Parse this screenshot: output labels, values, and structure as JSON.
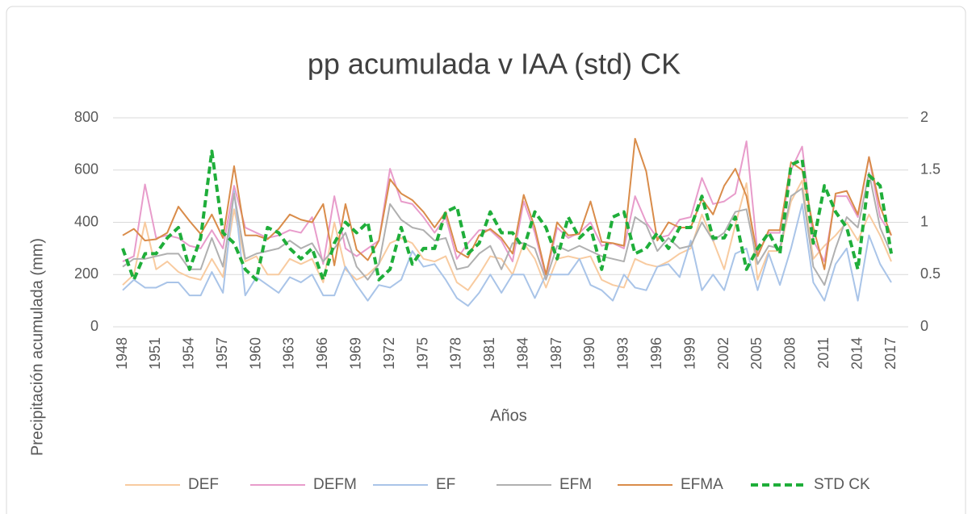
{
  "chart_data": {
    "type": "line",
    "title": "pp acumulada v IAA (std) CK",
    "x_label": "Años",
    "y_label": "Precipitación acumulada (mm)",
    "categories": [
      "1948",
      null,
      null,
      "1951",
      null,
      null,
      "1954",
      null,
      null,
      "1957",
      null,
      null,
      "1960",
      null,
      null,
      "1963",
      null,
      null,
      "1966",
      null,
      null,
      "1969",
      null,
      null,
      "1972",
      null,
      null,
      "1975",
      null,
      null,
      "1978",
      null,
      null,
      "1981",
      null,
      null,
      "1984",
      null,
      null,
      "1987",
      null,
      null,
      "1990",
      null,
      null,
      "1993",
      null,
      null,
      "1996",
      null,
      null,
      "1999",
      null,
      null,
      "2002",
      null,
      null,
      "2005",
      null,
      null,
      "2008",
      null,
      null,
      "2011",
      null,
      null,
      "2014",
      null,
      null,
      "2017"
    ],
    "ylim": [
      0,
      800
    ],
    "yticks": [
      0,
      200,
      400,
      600,
      800
    ],
    "y2lim": [
      0,
      2
    ],
    "y2ticks": [
      0,
      0.5,
      1,
      1.5,
      2
    ],
    "grid": true,
    "legend": "bottom",
    "series": [
      {
        "name": "DEF",
        "color": "#f8cba0",
        "values": [
          160,
          200,
          400,
          220,
          250,
          210,
          190,
          180,
          260,
          190,
          450,
          250,
          270,
          200,
          200,
          260,
          240,
          260,
          170,
          400,
          220,
          180,
          200,
          240,
          320,
          340,
          320,
          260,
          250,
          270,
          170,
          140,
          200,
          270,
          260,
          200,
          320,
          260,
          150,
          260,
          270,
          260,
          270,
          180,
          160,
          150,
          260,
          240,
          230,
          250,
          280,
          300,
          430,
          330,
          220,
          390,
          550,
          180,
          290,
          290,
          480,
          560,
          260,
          310,
          350,
          400,
          330,
          430,
          350,
          250
        ]
      },
      {
        "name": "DEFM",
        "color": "#e89ccb",
        "values": [
          250,
          270,
          545,
          340,
          350,
          340,
          310,
          300,
          370,
          300,
          540,
          380,
          360,
          340,
          350,
          370,
          360,
          420,
          240,
          500,
          300,
          270,
          300,
          330,
          605,
          480,
          470,
          420,
          360,
          420,
          260,
          320,
          370,
          370,
          330,
          250,
          480,
          360,
          190,
          380,
          340,
          360,
          400,
          310,
          320,
          300,
          500,
          400,
          340,
          350,
          410,
          420,
          570,
          470,
          480,
          510,
          710,
          280,
          360,
          360,
          600,
          690,
          330,
          250,
          500,
          500,
          420,
          650,
          420,
          350
        ]
      },
      {
        "name": "EF",
        "color": "#a9c4e8",
        "values": [
          140,
          180,
          150,
          150,
          170,
          170,
          120,
          120,
          210,
          130,
          520,
          120,
          190,
          160,
          130,
          190,
          170,
          200,
          120,
          120,
          230,
          160,
          100,
          160,
          150,
          180,
          290,
          230,
          240,
          180,
          110,
          80,
          130,
          200,
          130,
          200,
          200,
          110,
          200,
          200,
          200,
          260,
          160,
          140,
          100,
          200,
          150,
          140,
          230,
          240,
          190,
          330,
          140,
          200,
          140,
          280,
          300,
          140,
          280,
          160,
          300,
          470,
          170,
          100,
          240,
          300,
          100,
          350,
          240,
          170
        ]
      },
      {
        "name": "EFM",
        "color": "#b0b0b0",
        "values": [
          230,
          260,
          260,
          270,
          280,
          280,
          220,
          220,
          340,
          230,
          510,
          260,
          280,
          290,
          300,
          330,
          300,
          320,
          250,
          300,
          360,
          230,
          180,
          240,
          470,
          410,
          380,
          370,
          330,
          340,
          220,
          230,
          280,
          310,
          220,
          320,
          320,
          300,
          180,
          310,
          290,
          310,
          290,
          270,
          260,
          250,
          420,
          390,
          290,
          340,
          300,
          310,
          400,
          330,
          360,
          440,
          450,
          240,
          310,
          300,
          500,
          530,
          230,
          160,
          300,
          420,
          380,
          590,
          380,
          280
        ]
      },
      {
        "name": "EFMA",
        "color": "#d98c4a",
        "values": [
          350,
          375,
          330,
          335,
          360,
          460,
          405,
          355,
          430,
          340,
          615,
          350,
          350,
          335,
          375,
          430,
          410,
          400,
          470,
          235,
          470,
          295,
          255,
          330,
          565,
          510,
          485,
          440,
          380,
          440,
          290,
          265,
          350,
          375,
          340,
          280,
          505,
          380,
          200,
          400,
          350,
          355,
          480,
          325,
          320,
          310,
          720,
          595,
          330,
          400,
          380,
          380,
          490,
          430,
          540,
          605,
          500,
          270,
          370,
          370,
          630,
          600,
          380,
          220,
          510,
          520,
          430,
          650,
          460,
          350
        ]
      },
      {
        "name": "STD CK",
        "color": "#1fae3a",
        "dashed": true,
        "axis": "y2",
        "values": [
          0.75,
          0.45,
          0.7,
          0.7,
          0.85,
          0.95,
          0.55,
          0.85,
          1.68,
          0.9,
          0.8,
          0.55,
          0.45,
          0.95,
          0.9,
          0.75,
          0.65,
          0.75,
          0.45,
          0.8,
          1.0,
          0.9,
          1.0,
          0.45,
          0.55,
          0.95,
          0.6,
          0.75,
          0.75,
          1.1,
          1.15,
          0.7,
          0.8,
          1.1,
          0.9,
          0.9,
          0.75,
          1.1,
          0.95,
          0.65,
          1.05,
          0.85,
          0.95,
          0.55,
          1.05,
          1.1,
          0.7,
          0.75,
          0.9,
          0.75,
          0.95,
          0.95,
          1.25,
          0.85,
          0.85,
          1.05,
          0.55,
          0.75,
          0.9,
          0.7,
          1.55,
          1.6,
          0.8,
          1.35,
          1.1,
          0.95,
          0.55,
          1.45,
          1.35,
          0.7
        ]
      }
    ]
  }
}
